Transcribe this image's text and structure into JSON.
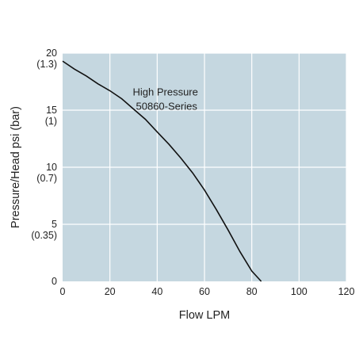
{
  "chart_data": {
    "type": "line",
    "xlabel": "Flow LPM",
    "ylabel": "Pressure/Head psi (bar)",
    "xlim": [
      0,
      120
    ],
    "ylim": [
      0,
      20
    ],
    "grid": true,
    "x_ticks": [
      {
        "value": 0,
        "label": "0"
      },
      {
        "value": 20,
        "label": "20"
      },
      {
        "value": 40,
        "label": "40"
      },
      {
        "value": 60,
        "label": "60"
      },
      {
        "value": 80,
        "label": "80"
      },
      {
        "value": 100,
        "label": "100"
      },
      {
        "value": 120,
        "label": "120"
      }
    ],
    "y_ticks": [
      {
        "value": 0,
        "label": "0",
        "sublabel": ""
      },
      {
        "value": 5,
        "label": "5",
        "sublabel": "(0.35)"
      },
      {
        "value": 10,
        "label": "10",
        "sublabel": "(0.7)"
      },
      {
        "value": 15,
        "label": "15",
        "sublabel": "(1)"
      },
      {
        "value": 20,
        "label": "20",
        "sublabel": "(1.3)"
      }
    ],
    "series": [
      {
        "x": [
          0,
          5,
          10,
          15,
          20,
          25,
          30,
          35,
          40,
          45,
          50,
          55,
          60,
          65,
          70,
          75,
          80,
          84
        ],
        "y": [
          19.3,
          18.6,
          18.0,
          17.3,
          16.7,
          16.0,
          15.1,
          14.2,
          13.1,
          12.0,
          10.8,
          9.5,
          8.0,
          6.3,
          4.5,
          2.6,
          0.9,
          0
        ]
      }
    ],
    "annotation": {
      "lines": [
        "High Pressure",
        "50860-Series"
      ],
      "x": 30,
      "y": 16.3
    },
    "colors": {
      "plot_background": "#c5d7e0",
      "grid": "#ffffff",
      "line": "#111111"
    }
  }
}
